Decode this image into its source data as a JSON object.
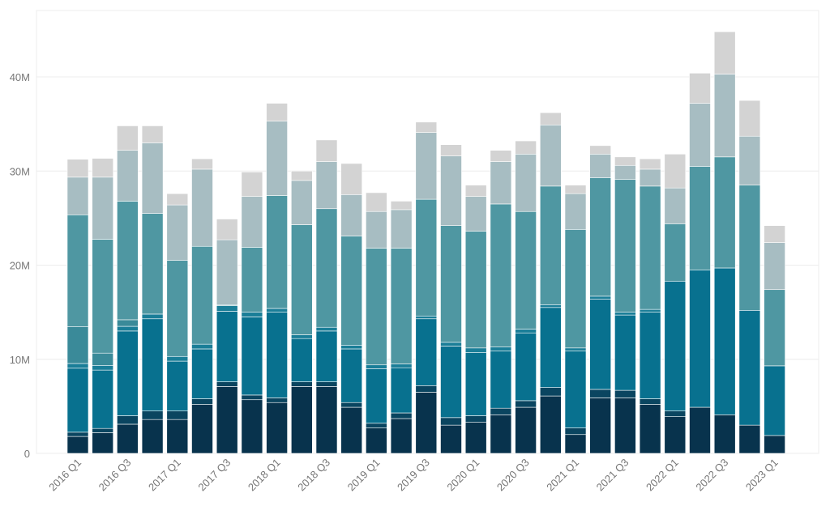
{
  "chart_data": {
    "type": "bar",
    "stacked": true,
    "title": "",
    "xlabel": "",
    "ylabel": "",
    "ylim": [
      0,
      47
    ],
    "y_ticks": [
      0,
      10,
      20,
      30,
      40
    ],
    "y_tick_labels": [
      "0",
      "10M",
      "20M",
      "30M",
      "40M"
    ],
    "grid": true,
    "categories": [
      "2016 Q1",
      "2016 Q2",
      "2016 Q3",
      "2016 Q4",
      "2017 Q1",
      "2017 Q2",
      "2017 Q3",
      "2017 Q4",
      "2018 Q1",
      "2018 Q2",
      "2018 Q3",
      "2018 Q4",
      "2019 Q1",
      "2019 Q2",
      "2019 Q3",
      "2019 Q4",
      "2020 Q1",
      "2020 Q2",
      "2020 Q3",
      "2020 Q4",
      "2021 Q1",
      "2021 Q2",
      "2021 Q3",
      "2021 Q4",
      "2022 Q1",
      "2022 Q2",
      "2022 Q3",
      "2022 Q4",
      "2023 Q1"
    ],
    "x_tick_labels": [
      "2016 Q1",
      "2016 Q3",
      "2017 Q1",
      "2017 Q3",
      "2018 Q1",
      "2018 Q3",
      "2019 Q1",
      "2019 Q3",
      "2020 Q1",
      "2020 Q3",
      "2021 Q1",
      "2021 Q3",
      "2022 Q1",
      "2022 Q3",
      "2023 Q1"
    ],
    "units": "M",
    "series": [
      {
        "color": "#08334d",
        "values": [
          1.8,
          2.2,
          3.1,
          3.6,
          3.6,
          5.2,
          7.1,
          5.7,
          5.4,
          7.1,
          7.1,
          4.9,
          2.7,
          3.7,
          6.5,
          3.0,
          3.3,
          4.1,
          4.9,
          6.1,
          2.0,
          5.9,
          5.9,
          5.2,
          3.9,
          4.9,
          4.1,
          3.0,
          1.9
        ]
      },
      {
        "color": "#0a4560",
        "values": [
          0.45,
          0.45,
          0.9,
          0.9,
          0.9,
          0.6,
          0.5,
          0.5,
          0.5,
          0.5,
          0.5,
          0.5,
          0.5,
          0.6,
          0.7,
          0.8,
          0.7,
          0.7,
          0.7,
          0.9,
          0.7,
          0.9,
          0.8,
          0.6,
          0.6,
          0,
          0,
          0,
          0
        ]
      },
      {
        "color": "#08718f",
        "values": [
          6.8,
          6.2,
          9.0,
          9.8,
          5.3,
          5.3,
          7.5,
          8.3,
          9.1,
          4.6,
          5.4,
          5.7,
          5.8,
          4.8,
          7.1,
          7.6,
          6.7,
          6.1,
          7.2,
          8.5,
          8.2,
          9.6,
          8.0,
          9.2,
          13.8,
          14.6,
          15.6,
          12.2,
          7.4
        ]
      },
      {
        "color": "#1a7e98",
        "values": [
          0.5,
          0.5,
          0.5,
          0.5,
          0.5,
          0.5,
          0.6,
          0.5,
          0.4,
          0.4,
          0.4,
          0.4,
          0.4,
          0.4,
          0.3,
          0.4,
          0.5,
          0.4,
          0.4,
          0.3,
          0.3,
          0.3,
          0.3,
          0.3,
          0,
          0,
          0,
          0,
          0
        ]
      },
      {
        "color": "#3a8a99",
        "values": [
          3.9,
          1.3,
          0.7,
          0,
          0,
          0,
          0,
          0,
          0,
          0,
          0,
          0,
          0,
          0,
          0,
          0,
          0,
          0,
          0,
          0,
          0,
          0,
          0,
          0,
          0,
          0,
          0,
          0,
          0
        ]
      },
      {
        "color": "#4f97a2",
        "values": [
          11.9,
          12.1,
          12.6,
          10.7,
          10.2,
          10.4,
          0.1,
          6.9,
          12.0,
          11.7,
          12.6,
          11.6,
          12.4,
          12.3,
          12.4,
          12.4,
          12.4,
          15.2,
          12.5,
          12.6,
          12.6,
          12.6,
          14.1,
          13.1,
          6.1,
          11.0,
          11.8,
          13.3,
          8.1
        ]
      },
      {
        "color": "#a7bdc2",
        "values": [
          4.0,
          6.6,
          5.4,
          7.5,
          5.9,
          8.2,
          6.9,
          5.4,
          7.9,
          4.7,
          5.0,
          4.4,
          3.9,
          4.1,
          7.1,
          7.4,
          3.7,
          4.5,
          6.1,
          6.5,
          3.8,
          2.5,
          1.5,
          1.8,
          3.8,
          6.7,
          8.8,
          5.2,
          5.0
        ]
      },
      {
        "color": "#d3d3d3",
        "values": [
          1.9,
          2.0,
          2.6,
          1.8,
          1.2,
          1.1,
          2.2,
          2.6,
          1.9,
          1.0,
          2.3,
          3.3,
          2.0,
          0.9,
          1.1,
          1.2,
          1.2,
          1.2,
          1.4,
          1.3,
          0.9,
          0.9,
          0.9,
          1.1,
          3.6,
          3.2,
          4.5,
          3.8,
          1.8
        ]
      }
    ]
  }
}
